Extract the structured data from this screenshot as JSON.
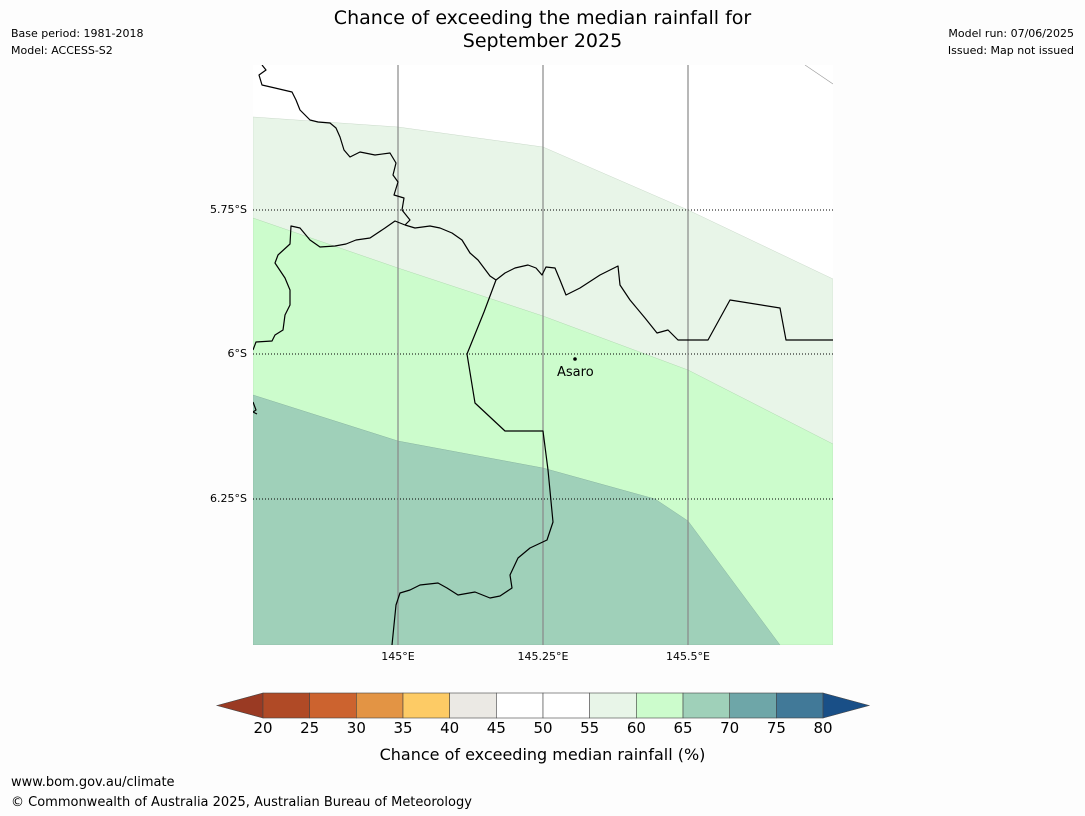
{
  "header": {
    "base_period": "Base period: 1981-2018",
    "model": "Model: ACCESS-S2",
    "model_run": "Model run: 07/06/2025",
    "issued": "Issued: Map not issued",
    "title_line1": "Chance of exceeding the median rainfall for",
    "title_line2": "September 2025"
  },
  "map": {
    "lat_ticks": [
      "5.75°S",
      "6°S",
      "6.25°S"
    ],
    "lon_ticks": [
      "145°E",
      "145.25°E",
      "145.5°E"
    ],
    "place": {
      "name": "Asaro"
    },
    "zones": [
      {
        "range": "55-60",
        "color": "#e8f5e8"
      },
      {
        "range": "60-65",
        "color": "#ccfccc"
      },
      {
        "range": "65-70",
        "color": "#9fd0b9"
      }
    ]
  },
  "colorbar": {
    "ticks": [
      "20",
      "25",
      "30",
      "35",
      "40",
      "45",
      "50",
      "55",
      "60",
      "65",
      "70",
      "75",
      "80"
    ],
    "colors": [
      "#9a3a23",
      "#b04a26",
      "#cc632f",
      "#e39444",
      "#fdcb65",
      "#ebe9e4",
      "#ffffff",
      "#ffffff",
      "#e8f5e8",
      "#ccfccc",
      "#9fd0b9",
      "#6ea6a8",
      "#417998",
      "#194f87"
    ],
    "label": "Chance of exceeding median rainfall (%)"
  },
  "footer": {
    "url": "www.bom.gov.au/climate",
    "copyright": "© Commonwealth of Australia 2025, Australian Bureau of Meteorology"
  }
}
